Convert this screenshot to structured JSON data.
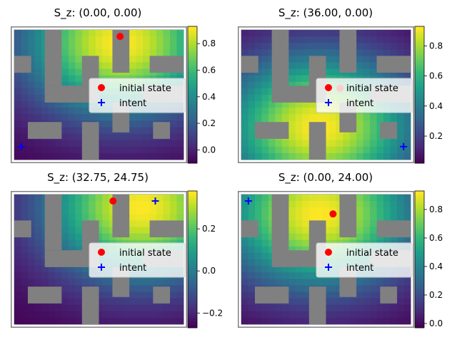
{
  "figure": {
    "legend_labels": [
      "initial state",
      "intent"
    ],
    "legend_placement": "center-right"
  },
  "chart_data": [
    {
      "type": "heatmap",
      "title": "S_z: (0.00, 0.00)",
      "colormap": "viridis",
      "vmin": -0.1,
      "vmax": 0.93,
      "colorbar_ticks": [
        "0.0",
        "0.2",
        "0.4",
        "0.6",
        "0.8"
      ],
      "colorbar_tick_values": [
        0.0,
        0.2,
        0.4,
        0.6,
        0.8
      ],
      "grid_size": [
        25,
        20
      ],
      "peak_cell": [
        7.5,
        1
      ],
      "initial_state": [
        7.5,
        0.5
      ],
      "intent": [
        0.5,
        9
      ]
    },
    {
      "type": "heatmap",
      "title": "S_z: (36.00, 0.00)",
      "colormap": "viridis",
      "vmin": 0.02,
      "vmax": 0.93,
      "colorbar_ticks": [
        "0.2",
        "0.4",
        "0.6",
        "0.8"
      ],
      "colorbar_tick_values": [
        0.2,
        0.4,
        0.6,
        0.8
      ],
      "grid_size": [
        25,
        20
      ],
      "peak_cell": [
        5.5,
        7.5
      ],
      "initial_state": [
        7,
        4.5
      ],
      "intent": [
        11.5,
        9
      ]
    },
    {
      "type": "heatmap",
      "title": "S_z: (32.75, 24.75)",
      "colormap": "viridis",
      "vmin": -0.27,
      "vmax": 0.38,
      "colorbar_ticks": [
        "−0.2",
        "0.0",
        "0.2"
      ],
      "colorbar_tick_values": [
        -0.2,
        0.0,
        0.2
      ],
      "grid_size": [
        25,
        20
      ],
      "peak_cell": [
        9,
        1
      ],
      "initial_state": [
        7,
        0.5
      ],
      "intent": [
        10,
        0.5
      ]
    },
    {
      "type": "heatmap",
      "title": "S_z: (0.00, 24.00)",
      "colormap": "viridis",
      "vmin": -0.03,
      "vmax": 0.93,
      "colorbar_ticks": [
        "0.0",
        "0.2",
        "0.4",
        "0.6",
        "0.8"
      ],
      "colorbar_tick_values": [
        0.0,
        0.2,
        0.4,
        0.6,
        0.8
      ],
      "grid_size": [
        25,
        20
      ],
      "peak_cell": [
        5.5,
        1.5
      ],
      "initial_state": [
        6.5,
        1.5
      ],
      "intent": [
        0.5,
        0.5
      ]
    }
  ]
}
